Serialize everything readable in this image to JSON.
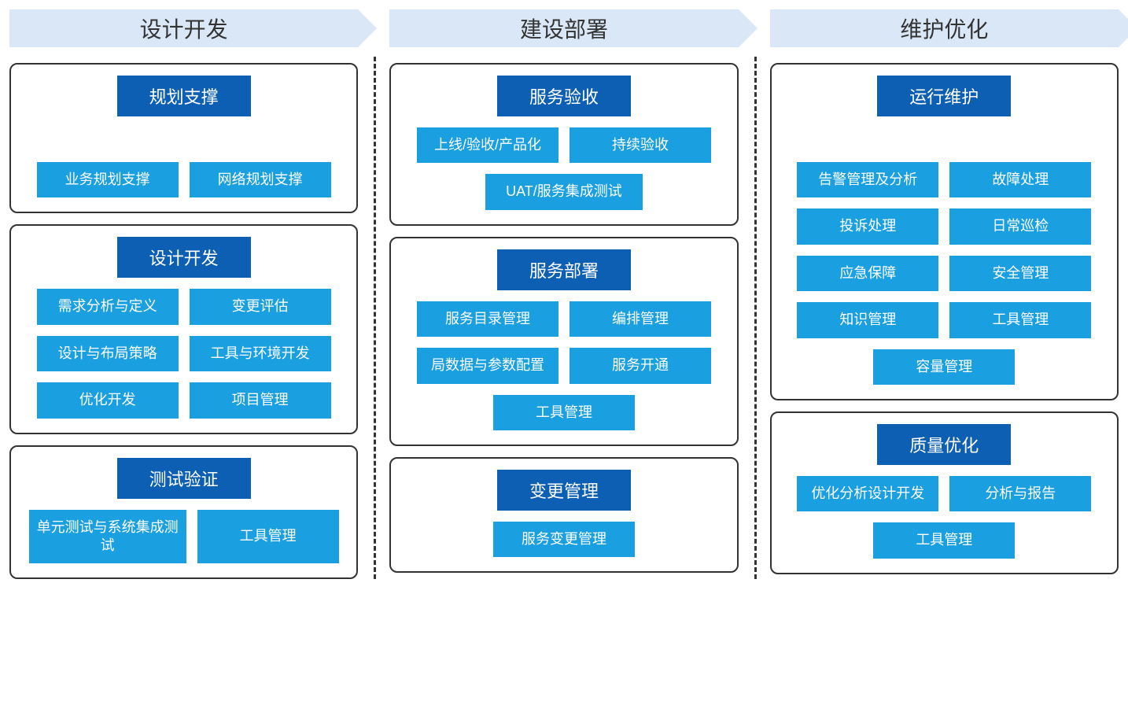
{
  "type": "infographic",
  "colors": {
    "phase_header_bg": "#d9e7f7",
    "phase_header_text": "#333333",
    "group_border": "#333333",
    "group_title_bg": "#0d5fb3",
    "group_title_text": "#ffffff",
    "item_bg": "#1a9fe0",
    "item_text": "#ffffff",
    "divider": "#333333",
    "background": "#ffffff"
  },
  "typography": {
    "phase_header_fontsize": 28,
    "group_title_fontsize": 22,
    "item_fontsize": 18
  },
  "phases": [
    {
      "title": "设计开发",
      "groups": [
        {
          "title": "规划支撑",
          "spacer": true,
          "items": [
            "业务规划支撑",
            "网络规划支撑"
          ]
        },
        {
          "title": "设计开发",
          "items": [
            "需求分析与定义",
            "变更评估",
            "设计与布局策略",
            "工具与环境开发",
            "优化开发",
            "项目管理"
          ]
        },
        {
          "title": "测试验证",
          "items": [
            "单元测试与系统集成测试",
            "工具管理"
          ]
        }
      ]
    },
    {
      "title": "建设部署",
      "groups": [
        {
          "title": "服务验收",
          "items": [
            "上线/验收/产品化",
            "持续验收",
            "UAT/服务集成测试"
          ]
        },
        {
          "title": "服务部署",
          "items": [
            "服务目录管理",
            "编排管理",
            "局数据与参数配置",
            "服务开通",
            "工具管理"
          ]
        },
        {
          "title": "变更管理",
          "items": [
            "服务变更管理"
          ]
        }
      ]
    },
    {
      "title": "维护优化",
      "groups": [
        {
          "title": "运行维护",
          "items": [
            "告警管理及分析",
            "故障处理",
            "投诉处理",
            "日常巡检",
            "应急保障",
            "安全管理",
            "知识管理",
            "工具管理",
            "容量管理"
          ]
        },
        {
          "title": "质量优化",
          "items": [
            "优化分析设计开发",
            "分析与报告",
            "工具管理"
          ]
        }
      ]
    }
  ]
}
